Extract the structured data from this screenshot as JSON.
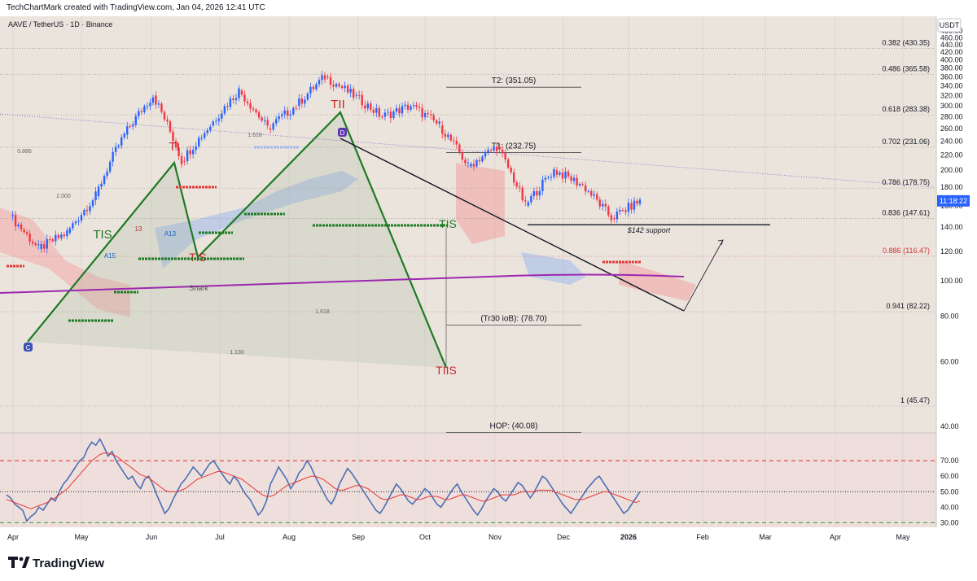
{
  "header": {
    "credit": "TechChartMark created with TradingView.com, Jan 04, 2026 12:41 UTC"
  },
  "symbol": {
    "title": "AAVE / TetherUS · 1D · Binance",
    "currency": "USDT",
    "price_badge": "11:18:22"
  },
  "footer": {
    "brand": "TradingView"
  },
  "colors": {
    "pane_bg": "#ebe4dc",
    "rsi_bg": "#efdfdc",
    "bull_candle": "#2962ff",
    "bear_candle": "#f23645",
    "harmonic": "#1e7a24",
    "ma": "#9c27b0",
    "rsi": "#4a6fb5",
    "rsi_ma": "#e53935"
  },
  "chart_data": {
    "type": "candlestick",
    "x_axis": [
      "Apr",
      "May",
      "Jun",
      "Jul",
      "Aug",
      "Sep",
      "Oct",
      "Nov",
      "Dec",
      "2026",
      "Feb",
      "Mar",
      "Apr",
      "May"
    ],
    "y_ticks": [
      40,
      60,
      80,
      100,
      120,
      140,
      160,
      180,
      200,
      220,
      240,
      260,
      280,
      300,
      320,
      340,
      360,
      380,
      400,
      420,
      440,
      460,
      480
    ],
    "ylim": [
      40,
      480
    ],
    "price_path": [
      [
        "Apr",
        150
      ],
      [
        "Apr",
        122
      ],
      [
        "Apr",
        135
      ],
      [
        "May",
        170
      ],
      [
        "May",
        250
      ],
      [
        "Jun",
        320
      ],
      [
        "Jun",
        212
      ],
      [
        "Jul",
        265
      ],
      [
        "Jul",
        330
      ],
      [
        "Aug",
        260
      ],
      [
        "Aug",
        300
      ],
      [
        "Sep",
        360
      ],
      [
        "Sep",
        320
      ],
      [
        "Sep",
        280
      ],
      [
        "Oct",
        300
      ],
      [
        "Oct",
        265
      ],
      [
        "Oct",
        205
      ],
      [
        "Nov",
        232
      ],
      [
        "Nov",
        160
      ],
      [
        "Dec",
        200
      ],
      [
        "Dec",
        182
      ],
      [
        "Dec",
        148
      ],
      [
        "2026",
        165
      ]
    ],
    "fib_levels": [
      {
        "label": "0.382 (430.35)",
        "value": 430.35
      },
      {
        "label": "0.486 (365.58)",
        "value": 365.58
      },
      {
        "label": "0.618 (283.38)",
        "value": 283.38
      },
      {
        "label": "0.702 (231.06)",
        "value": 231.06
      },
      {
        "label": "0.786 (178.75)",
        "value": 178.75
      },
      {
        "label": "0.836 (147.61)",
        "value": 147.61
      },
      {
        "label": "0.886 (116.47)",
        "value": 116.47
      },
      {
        "label": "0.941 (82.22)",
        "value": 82.22
      },
      {
        "label": "1 (45.47)",
        "value": 45.47
      }
    ],
    "targets": [
      {
        "label": "T2: (351.05)",
        "value": 351.05
      },
      {
        "label": "T1: (232.75)",
        "value": 232.75
      },
      {
        "label": "(Tr30 ioB): (78.70)",
        "value": 78.7
      },
      {
        "label": "HOP: (40.08)",
        "value": 40.08
      }
    ],
    "support": {
      "label": "$142 support",
      "value": 142
    },
    "annotations": [
      "TI",
      "TII",
      "TIS",
      "TIS",
      "TIS",
      "TIIS",
      "C",
      "D",
      "Shark",
      "1.618",
      "1.618",
      "2.000",
      "1.130",
      "0.886",
      "A13",
      "A15",
      "13"
    ],
    "rsi": {
      "ticks": [
        30,
        40,
        50,
        60,
        70
      ],
      "ylim": [
        27,
        88
      ],
      "levels": [
        70,
        50,
        30
      ],
      "ma_label_hint": "",
      "values": [
        48,
        46,
        42,
        40,
        38,
        31,
        34,
        36,
        40,
        38,
        42,
        46,
        44,
        50,
        55,
        58,
        62,
        66,
        70,
        72,
        78,
        82,
        80,
        84,
        79,
        73,
        76,
        70,
        66,
        62,
        58,
        60,
        55,
        52,
        58,
        60,
        55,
        48,
        42,
        36,
        39,
        45,
        50,
        55,
        58,
        62,
        66,
        63,
        60,
        64,
        68,
        70,
        66,
        62,
        58,
        55,
        60,
        57,
        52,
        48,
        45,
        40,
        35,
        38,
        44,
        55,
        60,
        66,
        62,
        58,
        52,
        56,
        62,
        65,
        70,
        66,
        60,
        55,
        50,
        45,
        42,
        47,
        55,
        60,
        65,
        62,
        58,
        54,
        50,
        46,
        42,
        38,
        36,
        40,
        45,
        50,
        55,
        52,
        48,
        44,
        42,
        45,
        48,
        52,
        50,
        46,
        42,
        40,
        44,
        48,
        52,
        55,
        50,
        46,
        42,
        38,
        35,
        39,
        44,
        48,
        52,
        50,
        46,
        44,
        48,
        52,
        56,
        54,
        50,
        46,
        50,
        55,
        60,
        58,
        54,
        50,
        46,
        42,
        39,
        36,
        40,
        44,
        48,
        52,
        55,
        58,
        60,
        56,
        52,
        48,
        44,
        40,
        36,
        38,
        42,
        46,
        50
      ],
      "ma_values": [
        45,
        44,
        43,
        42,
        41,
        40,
        39,
        40,
        41,
        42,
        43,
        45,
        46,
        48,
        50,
        52,
        55,
        58,
        61,
        64,
        67,
        70,
        72,
        74,
        75,
        75,
        74,
        73,
        71,
        69,
        67,
        65,
        63,
        61,
        60,
        59,
        57,
        55,
        53,
        51,
        50,
        50,
        50,
        51,
        52,
        54,
        56,
        58,
        59,
        60,
        61,
        62,
        63,
        63,
        62,
        61,
        60,
        59,
        58,
        56,
        54,
        52,
        50,
        48,
        47,
        47,
        48,
        50,
        52,
        54,
        55,
        56,
        57,
        58,
        59,
        60,
        60,
        59,
        58,
        56,
        54,
        52,
        51,
        51,
        52,
        53,
        54,
        54,
        53,
        52,
        50,
        48,
        46,
        45,
        45,
        46,
        47,
        48,
        48,
        47,
        46,
        45,
        45,
        46,
        47,
        47,
        47,
        46,
        45,
        45,
        46,
        47,
        48,
        48,
        47,
        46,
        45,
        44,
        44,
        45,
        46,
        47,
        48,
        48,
        48,
        48,
        49,
        50,
        50,
        50,
        50,
        51,
        51,
        51,
        51,
        50,
        49,
        48,
        47,
        46,
        45,
        45,
        45,
        46,
        47,
        48,
        49,
        50,
        50,
        49,
        48,
        47,
        46,
        45,
        44,
        43,
        44
      ]
    }
  }
}
